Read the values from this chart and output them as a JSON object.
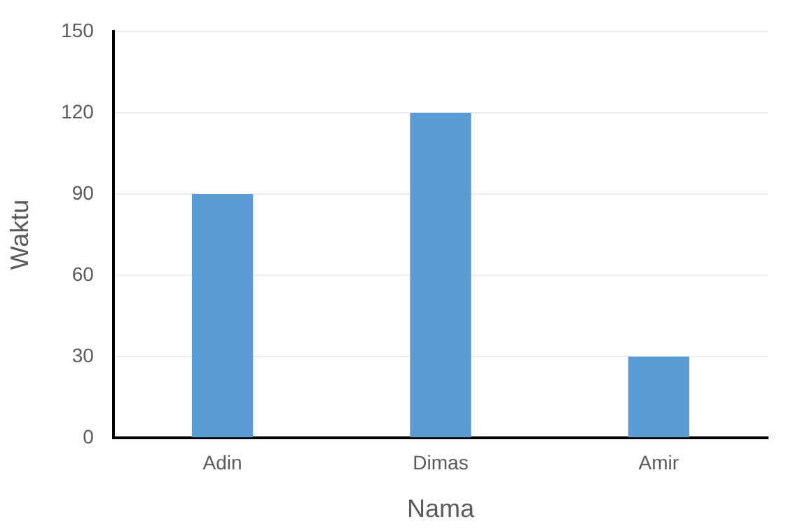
{
  "chart_data": {
    "type": "bar",
    "xlabel": "Nama",
    "ylabel": "Waktu",
    "categories": [
      "Adin",
      "Dimas",
      "Amir"
    ],
    "values": [
      90,
      120,
      30
    ],
    "color": "#5b9bd5",
    "ylim": [
      0,
      150
    ],
    "yticks": [
      0,
      30,
      60,
      90,
      120,
      150
    ],
    "grid": "y",
    "legend": false
  }
}
